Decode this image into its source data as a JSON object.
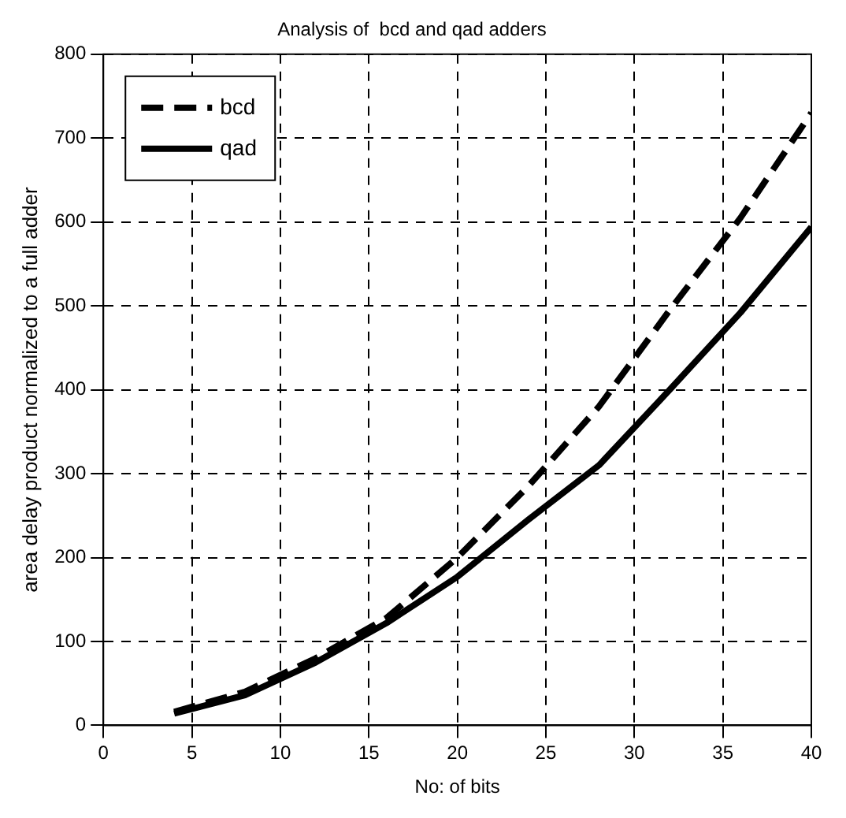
{
  "chart_data": {
    "type": "line",
    "title": "Analysis of  bcd and qad adders",
    "xlabel": "No: of bits",
    "ylabel": "area delay product normalized to a full adder",
    "x": [
      4,
      8,
      12,
      16,
      20,
      24,
      28,
      32,
      36,
      40
    ],
    "series": [
      {
        "name": "bcd",
        "color": "#000000",
        "line_style": "dashed",
        "values": [
          16,
          40,
          80,
          128,
          200,
          285,
          380,
          495,
          605,
          730
        ]
      },
      {
        "name": "qad",
        "color": "#000000",
        "line_style": "solid",
        "values": [
          14,
          36,
          75,
          122,
          177,
          245,
          310,
          400,
          492,
          594
        ]
      }
    ],
    "xlim": [
      0,
      40
    ],
    "xticks": [
      0,
      5,
      10,
      15,
      20,
      25,
      30,
      35,
      40
    ],
    "ylim": [
      0,
      800
    ],
    "yticks": [
      0,
      100,
      200,
      300,
      400,
      500,
      600,
      700,
      800
    ],
    "grid": true,
    "legend": "top left",
    "marker": "none"
  }
}
